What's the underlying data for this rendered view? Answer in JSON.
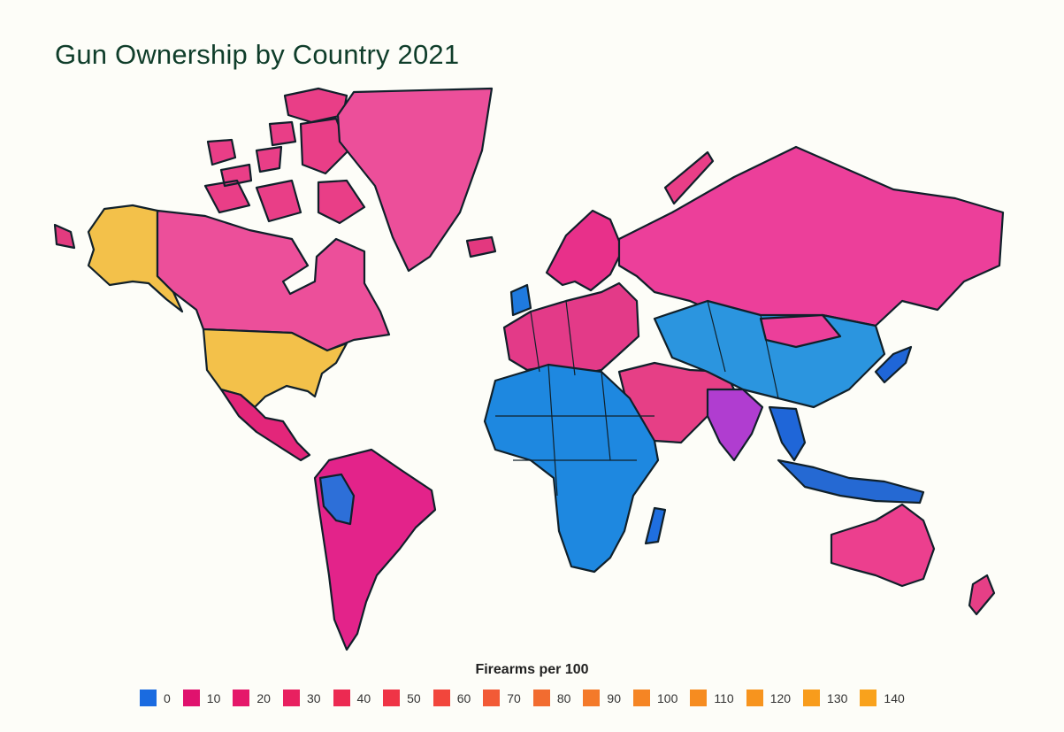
{
  "title": "Gun Ownership by Country 2021",
  "legend": {
    "title": "Firearms per 100",
    "items": [
      {
        "label": "0",
        "color": "#1a6be0"
      },
      {
        "label": "10",
        "color": "#e0126e"
      },
      {
        "label": "20",
        "color": "#e5186a"
      },
      {
        "label": "30",
        "color": "#e82060"
      },
      {
        "label": "40",
        "color": "#ec2a52"
      },
      {
        "label": "50",
        "color": "#ef3446"
      },
      {
        "label": "60",
        "color": "#f2463c"
      },
      {
        "label": "70",
        "color": "#f25a36"
      },
      {
        "label": "80",
        "color": "#f26c30"
      },
      {
        "label": "90",
        "color": "#f47a2a"
      },
      {
        "label": "100",
        "color": "#f58524"
      },
      {
        "label": "110",
        "color": "#f68c20"
      },
      {
        "label": "120",
        "color": "#f7941e"
      },
      {
        "label": "130",
        "color": "#f89c1c"
      },
      {
        "label": "140",
        "color": "#f9a21c"
      }
    ]
  },
  "regions": [
    {
      "name": "Canada",
      "fill": "#ec4f9a"
    },
    {
      "name": "Alaska",
      "fill": "#f3c14a"
    },
    {
      "name": "United States",
      "fill": "#f3c14a"
    },
    {
      "name": "Greenland",
      "fill": "#ec4f9a"
    },
    {
      "name": "Mexico",
      "fill": "#e3267a"
    },
    {
      "name": "South America",
      "fill": "#e3238a"
    },
    {
      "name": "Andean region",
      "fill": "#2d6fd8"
    },
    {
      "name": "Europe",
      "fill": "#e33a88"
    },
    {
      "name": "Russia",
      "fill": "#ec3f9a"
    },
    {
      "name": "Africa",
      "fill": "#1e88e0"
    },
    {
      "name": "Central Asia and China",
      "fill": "#2b95df"
    },
    {
      "name": "India",
      "fill": "#b03dd0"
    },
    {
      "name": "Middle East",
      "fill": "#e63f86"
    },
    {
      "name": "Australia",
      "fill": "#ec3f8e"
    },
    {
      "name": "Indonesia",
      "fill": "#2569d3"
    }
  ]
}
